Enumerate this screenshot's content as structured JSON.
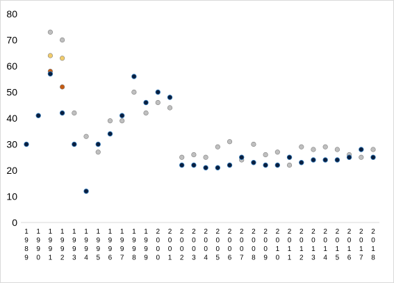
{
  "chart_data": {
    "type": "scatter",
    "title": "",
    "xlabel": "",
    "ylabel": "",
    "ylim": [
      0,
      80
    ],
    "yticks": [
      0,
      10,
      20,
      30,
      40,
      50,
      60,
      70,
      80
    ],
    "categories": [
      "1989",
      "1990",
      "1991",
      "1992",
      "1993",
      "1994",
      "1995",
      "1996",
      "1997",
      "1998",
      "1999",
      "2000",
      "2001",
      "2002",
      "2003",
      "2004",
      "2005",
      "2006",
      "2007",
      "2008",
      "2009",
      "2010",
      "2011",
      "2012",
      "2013",
      "2014",
      "2015",
      "2016",
      "2017",
      "2018"
    ],
    "grid": false,
    "legend": "none",
    "series": [
      {
        "color": "#bfbfbf",
        "values": [
          null,
          null,
          73,
          70,
          42,
          33,
          27,
          39,
          39,
          50,
          42,
          46,
          44,
          25,
          26,
          25,
          29,
          31,
          24,
          30,
          26,
          27,
          22,
          29,
          28,
          29,
          28,
          26,
          25,
          28
        ]
      },
      {
        "color": "#f2cc6b",
        "values": [
          null,
          null,
          64,
          63,
          null,
          null,
          null,
          null,
          null,
          null,
          null,
          null,
          null,
          null,
          null,
          null,
          null,
          null,
          null,
          null,
          null,
          null,
          null,
          null,
          null,
          null,
          null,
          null,
          null,
          null
        ]
      },
      {
        "color": "#c55a11",
        "values": [
          null,
          null,
          58,
          52,
          null,
          null,
          null,
          null,
          null,
          null,
          null,
          null,
          null,
          null,
          null,
          null,
          null,
          null,
          null,
          null,
          null,
          null,
          null,
          null,
          null,
          null,
          null,
          null,
          null,
          null
        ]
      },
      {
        "color": "#0a1f3f",
        "values": [
          30,
          41,
          57,
          42,
          30,
          12,
          30,
          34,
          41,
          56,
          46,
          50,
          48,
          22,
          22,
          21,
          21,
          22,
          25,
          23,
          22,
          22,
          25,
          23,
          24,
          24,
          24,
          25,
          28,
          25
        ]
      }
    ]
  }
}
